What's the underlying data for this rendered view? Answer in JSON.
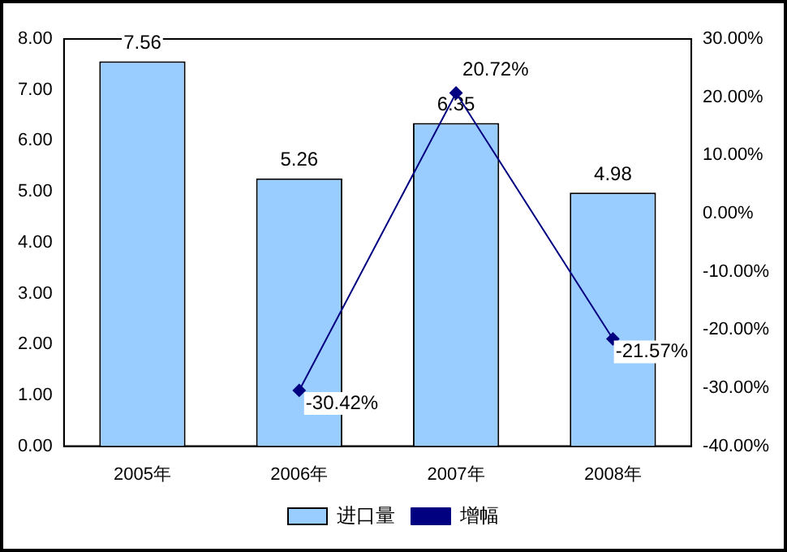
{
  "chart_data": {
    "type": "bar",
    "categories": [
      "2005年",
      "2006年",
      "2007年",
      "2008年"
    ],
    "series": [
      {
        "name": "进口量",
        "color": "#99ccff",
        "values": [
          7.56,
          5.26,
          6.35,
          4.98
        ],
        "value_labels": [
          "7.56",
          "5.26",
          "6.35",
          "4.98"
        ]
      },
      {
        "name": "增幅",
        "type": "line",
        "axis": "y2",
        "color": "#000080",
        "marker": "diamond",
        "values": [
          null,
          -30.42,
          20.72,
          -21.57
        ],
        "value_labels": [
          null,
          "-30.42%",
          "20.72%",
          "-21.57%"
        ]
      }
    ],
    "ylim": [
      0,
      8
    ],
    "yticks": [
      {
        "value": 0,
        "label": "0.00"
      },
      {
        "value": 1,
        "label": "1.00"
      },
      {
        "value": 2,
        "label": "2.00"
      },
      {
        "value": 3,
        "label": "3.00"
      },
      {
        "value": 4,
        "label": "4.00"
      },
      {
        "value": 5,
        "label": "5.00"
      },
      {
        "value": 6,
        "label": "6.00"
      },
      {
        "value": 7,
        "label": "7.00"
      },
      {
        "value": 8,
        "label": "8.00"
      }
    ],
    "y2lim": [
      -40,
      30
    ],
    "y2ticks": [
      {
        "value": -40,
        "label": "-40.00%"
      },
      {
        "value": -30,
        "label": "-30.00%"
      },
      {
        "value": -20,
        "label": "-20.00%"
      },
      {
        "value": -10,
        "label": "-10.00%"
      },
      {
        "value": 0,
        "label": "0.00%"
      },
      {
        "value": 10,
        "label": "10.00%"
      },
      {
        "value": 20,
        "label": "20.00%"
      },
      {
        "value": 30,
        "label": "30.00%"
      }
    ],
    "grid": false,
    "legend": "bottom"
  }
}
